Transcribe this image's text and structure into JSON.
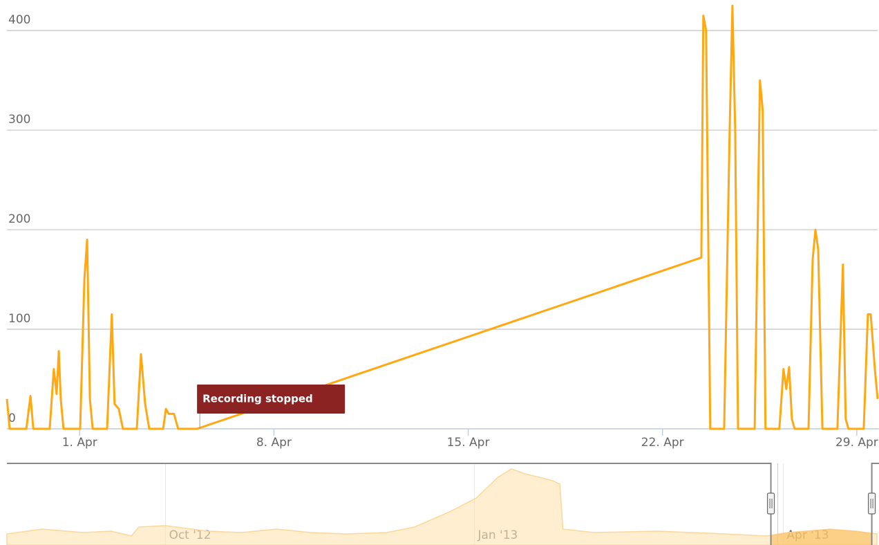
{
  "chart_data": [
    {
      "type": "line",
      "color": "#ffa811",
      "x": [
        -1.62,
        -1.52,
        -0.92,
        -0.77,
        -0.67,
        -0.08,
        0.07,
        0.17,
        0.25,
        0.32,
        0.42,
        1.02,
        1.17,
        1.27,
        1.37,
        1.47,
        1.99,
        2.16,
        2.26,
        2.41,
        2.56,
        3.06,
        3.21,
        3.36,
        3.51,
        4.01,
        4.11,
        4.21,
        4.4,
        4.55,
        5.23,
        23.4,
        23.47,
        23.57,
        23.72,
        24.22,
        24.42,
        24.52,
        24.62,
        24.72,
        25.32,
        25.51,
        25.61,
        25.71,
        26.21,
        26.36,
        26.46,
        26.56,
        26.66,
        26.76,
        27.26,
        27.41,
        27.51,
        27.61,
        27.76,
        28.3,
        28.5,
        28.6,
        28.7,
        29.25,
        29.4,
        29.5,
        29.65,
        29.75
      ],
      "values": [
        30,
        0,
        0,
        33,
        0,
        0,
        60,
        35,
        78,
        30,
        0,
        0,
        150,
        190,
        30,
        0,
        0,
        115,
        25,
        20,
        0,
        0,
        75,
        25,
        0,
        0,
        20,
        15,
        15,
        0,
        0,
        172,
        415,
        400,
        0,
        0,
        300,
        425,
        300,
        0,
        0,
        350,
        320,
        0,
        0,
        60,
        40,
        62,
        10,
        0,
        0,
        170,
        200,
        180,
        0,
        0,
        165,
        10,
        0,
        0,
        115,
        115,
        60,
        30
      ],
      "xlim": [
        -1.62,
        29.8
      ],
      "ylim": [
        0,
        430
      ],
      "xticks": [
        {
          "value": 1,
          "label": "1. Apr"
        },
        {
          "value": 8,
          "label": "8. Apr"
        },
        {
          "value": 15,
          "label": "15. Apr"
        },
        {
          "value": 22,
          "label": "22. Apr"
        },
        {
          "value": 29,
          "label": "29. Apr"
        }
      ],
      "yticks": [
        0,
        100,
        200,
        300,
        400
      ],
      "grid": true,
      "annotations": [
        {
          "x": 5.23,
          "text": "Recording stopped"
        }
      ]
    },
    {
      "type": "area",
      "color": "#ffe2b0",
      "x": [
        8.46,
        8.8,
        9.2,
        9.47,
        9.67,
        9.74,
        10.0,
        10.41,
        10.74,
        11.08,
        11.41,
        11.75,
        12.15,
        12.42,
        12.76,
        13.02,
        13.23,
        13.36,
        13.49,
        13.63,
        13.76,
        13.83,
        13.86,
        14.16,
        14.77,
        15.44,
        15.84,
        16.04,
        16.45,
        16.71,
        16.91
      ],
      "values": [
        13.8,
        19.8,
        15.5,
        17.2,
        11.2,
        22.4,
        24.1,
        17.2,
        15.5,
        19.8,
        15.5,
        13.8,
        15.5,
        22.4,
        41.4,
        58.6,
        84.5,
        94.8,
        88.8,
        84.5,
        80.2,
        75.9,
        19.8,
        15.5,
        17.2,
        13.8,
        11.2,
        15.5,
        19.8,
        17.2,
        13.8
      ],
      "xlim": [
        8.46,
        16.93
      ],
      "ylim": [
        0,
        100
      ],
      "xticks": [
        {
          "value": 10,
          "label": "Oct '12"
        },
        {
          "value": 13,
          "label": "Jan '13"
        },
        {
          "value": 16,
          "label": "Apr '13"
        }
      ],
      "range": [
        15.88,
        16.86
      ]
    }
  ]
}
